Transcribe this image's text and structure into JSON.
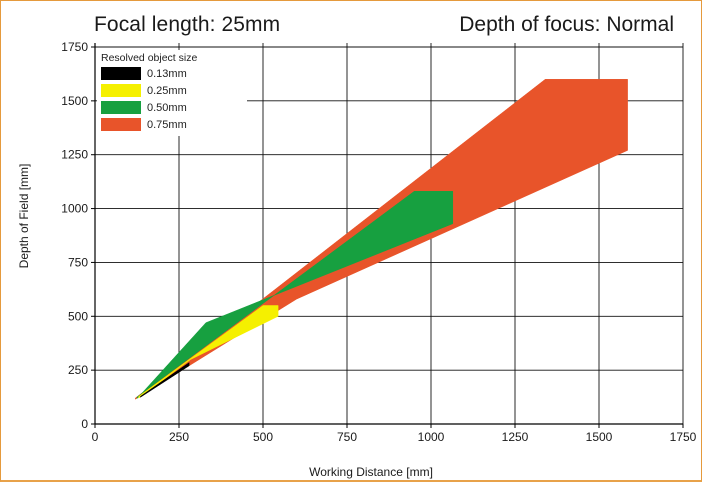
{
  "header": {
    "focal_length": "Focal length: 25mm",
    "depth_of_focus": "Depth of focus: Normal"
  },
  "chart_data": {
    "type": "area",
    "xlabel": "Working Distance [mm]",
    "ylabel": "Depth of Field [mm]",
    "xlim": [
      0,
      1750
    ],
    "ylim": [
      0,
      1750
    ],
    "x_ticks": [
      0,
      250,
      500,
      750,
      1000,
      1250,
      1500,
      1750
    ],
    "y_ticks": [
      0,
      250,
      500,
      750,
      1000,
      1250,
      1500,
      1750
    ],
    "grid": true,
    "legend": {
      "title": "Resolved object size",
      "position": "top-left"
    },
    "series": [
      {
        "name": "0.75mm",
        "color": "#e8542a",
        "polygon": [
          [
            120,
            120
          ],
          [
            1340,
            1600
          ],
          [
            1585,
            1600
          ],
          [
            1585,
            1270
          ],
          [
            600,
            580
          ],
          [
            120,
            115
          ]
        ]
      },
      {
        "name": "0.50mm",
        "color": "#17a040",
        "polygon": [
          [
            125,
            125
          ],
          [
            950,
            1080
          ],
          [
            1065,
            1080
          ],
          [
            1065,
            930
          ],
          [
            330,
            470
          ],
          [
            125,
            118
          ]
        ]
      },
      {
        "name": "0.25mm",
        "color": "#f5f000",
        "polygon": [
          [
            130,
            128
          ],
          [
            500,
            550
          ],
          [
            545,
            550
          ],
          [
            545,
            500
          ],
          [
            285,
            300
          ],
          [
            130,
            120
          ]
        ]
      },
      {
        "name": "0.13mm",
        "color": "#000000",
        "polygon": [
          [
            135,
            128
          ],
          [
            280,
            285
          ],
          [
            280,
            270
          ],
          [
            135,
            124
          ]
        ]
      }
    ]
  }
}
